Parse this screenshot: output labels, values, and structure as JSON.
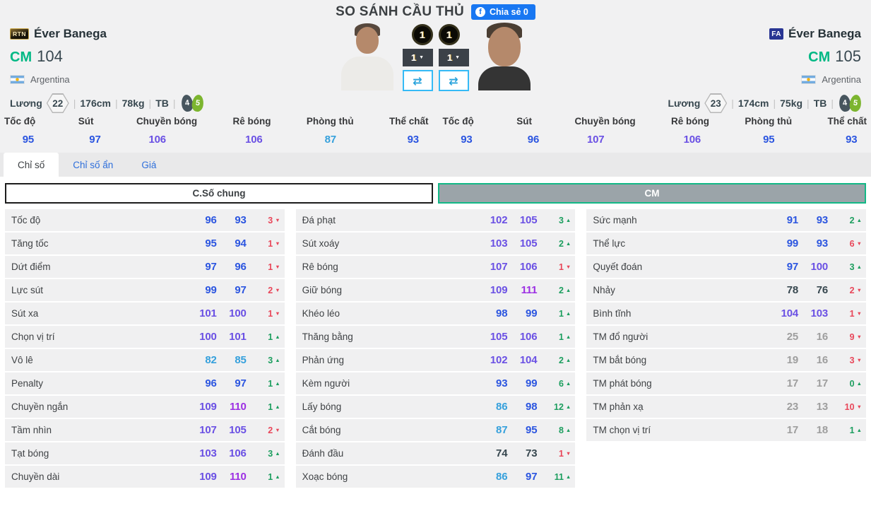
{
  "title": "SO SÁNH CẦU THỦ",
  "share": {
    "label": "Chia sẻ 0",
    "fb": "f"
  },
  "players": {
    "left": {
      "badge": "RTN",
      "name": "Éver Banega",
      "position": "CM",
      "ovr": "104",
      "nation": "Argentina",
      "salary_label": "Lương",
      "salary": "22",
      "height": "176cm",
      "weight": "78kg",
      "body": "TB",
      "weak_foot": "4",
      "strong_foot": "5",
      "sep": "|"
    },
    "right": {
      "badge": "FA",
      "name": "Éver Banega",
      "position": "CM",
      "ovr": "105",
      "nation": "Argentina",
      "salary_label": "Lương",
      "salary": "23",
      "height": "174cm",
      "weight": "75kg",
      "body": "TB",
      "weak_foot": "4",
      "strong_foot": "5",
      "sep": "|"
    }
  },
  "controls": {
    "left_level": "1",
    "right_level": "1",
    "left_select": "1",
    "right_select": "1",
    "caret": "▼",
    "swap_icon": "⇄"
  },
  "headline_left": [
    {
      "label": "Tốc độ",
      "value": "95"
    },
    {
      "label": "Sút",
      "value": "97"
    },
    {
      "label": "Chuyền bóng",
      "value": "106"
    },
    {
      "label": "Rê bóng",
      "value": "106"
    },
    {
      "label": "Phòng thủ",
      "value": "87"
    },
    {
      "label": "Thể chất",
      "value": "93"
    }
  ],
  "headline_right": [
    {
      "label": "Tốc độ",
      "value": "93"
    },
    {
      "label": "Sút",
      "value": "96"
    },
    {
      "label": "Chuyền bóng",
      "value": "107"
    },
    {
      "label": "Rê bóng",
      "value": "106"
    },
    {
      "label": "Phòng thủ",
      "value": "95"
    },
    {
      "label": "Thể chất",
      "value": "93"
    }
  ],
  "tabs": [
    {
      "label": "Chỉ số",
      "active": true
    },
    {
      "label": "Chỉ số ẩn",
      "active": false
    },
    {
      "label": "Giá",
      "active": false
    }
  ],
  "sections": {
    "general": "C.Số chung",
    "position": "CM"
  },
  "stat_columns": {
    "col1": [
      {
        "label": "Tốc độ",
        "v1": "96",
        "v2": "93",
        "d": "3",
        "dir": "down"
      },
      {
        "label": "Tăng tốc",
        "v1": "95",
        "v2": "94",
        "d": "1",
        "dir": "down"
      },
      {
        "label": "Dứt điểm",
        "v1": "97",
        "v2": "96",
        "d": "1",
        "dir": "down"
      },
      {
        "label": "Lực sút",
        "v1": "99",
        "v2": "97",
        "d": "2",
        "dir": "down"
      },
      {
        "label": "Sút xa",
        "v1": "101",
        "v2": "100",
        "d": "1",
        "dir": "down"
      },
      {
        "label": "Chọn vị trí",
        "v1": "100",
        "v2": "101",
        "d": "1",
        "dir": "up"
      },
      {
        "label": "Vô lê",
        "v1": "82",
        "v2": "85",
        "d": "3",
        "dir": "up"
      },
      {
        "label": "Penalty",
        "v1": "96",
        "v2": "97",
        "d": "1",
        "dir": "up"
      },
      {
        "label": "Chuyền ngắn",
        "v1": "109",
        "v2": "110",
        "d": "1",
        "dir": "up"
      },
      {
        "label": "Tầm nhìn",
        "v1": "107",
        "v2": "105",
        "d": "2",
        "dir": "down"
      },
      {
        "label": "Tạt bóng",
        "v1": "103",
        "v2": "106",
        "d": "3",
        "dir": "up"
      },
      {
        "label": "Chuyền dài",
        "v1": "109",
        "v2": "110",
        "d": "1",
        "dir": "up"
      }
    ],
    "col2": [
      {
        "label": "Đá phạt",
        "v1": "102",
        "v2": "105",
        "d": "3",
        "dir": "up"
      },
      {
        "label": "Sút xoáy",
        "v1": "103",
        "v2": "105",
        "d": "2",
        "dir": "up"
      },
      {
        "label": "Rê bóng",
        "v1": "107",
        "v2": "106",
        "d": "1",
        "dir": "down"
      },
      {
        "label": "Giữ bóng",
        "v1": "109",
        "v2": "111",
        "d": "2",
        "dir": "up"
      },
      {
        "label": "Khéo léo",
        "v1": "98",
        "v2": "99",
        "d": "1",
        "dir": "up"
      },
      {
        "label": "Thăng bằng",
        "v1": "105",
        "v2": "106",
        "d": "1",
        "dir": "up"
      },
      {
        "label": "Phản ứng",
        "v1": "102",
        "v2": "104",
        "d": "2",
        "dir": "up"
      },
      {
        "label": "Kèm người",
        "v1": "93",
        "v2": "99",
        "d": "6",
        "dir": "up"
      },
      {
        "label": "Lấy bóng",
        "v1": "86",
        "v2": "98",
        "d": "12",
        "dir": "up"
      },
      {
        "label": "Cắt bóng",
        "v1": "87",
        "v2": "95",
        "d": "8",
        "dir": "up"
      },
      {
        "label": "Đánh đầu",
        "v1": "74",
        "v2": "73",
        "d": "1",
        "dir": "down"
      },
      {
        "label": "Xoạc bóng",
        "v1": "86",
        "v2": "97",
        "d": "11",
        "dir": "up"
      }
    ],
    "col3": [
      {
        "label": "Sức mạnh",
        "v1": "91",
        "v2": "93",
        "d": "2",
        "dir": "up"
      },
      {
        "label": "Thể lực",
        "v1": "99",
        "v2": "93",
        "d": "6",
        "dir": "down"
      },
      {
        "label": "Quyết đoán",
        "v1": "97",
        "v2": "100",
        "d": "3",
        "dir": "up"
      },
      {
        "label": "Nhảy",
        "v1": "78",
        "v2": "76",
        "d": "2",
        "dir": "down"
      },
      {
        "label": "Bình tĩnh",
        "v1": "104",
        "v2": "103",
        "d": "1",
        "dir": "down"
      },
      {
        "label": "TM đổ người",
        "v1": "25",
        "v2": "16",
        "d": "9",
        "dir": "down"
      },
      {
        "label": "TM bắt bóng",
        "v1": "19",
        "v2": "16",
        "d": "3",
        "dir": "down"
      },
      {
        "label": "TM phát bóng",
        "v1": "17",
        "v2": "17",
        "d": "0",
        "dir": "up"
      },
      {
        "label": "TM phản xạ",
        "v1": "23",
        "v2": "13",
        "d": "10",
        "dir": "down"
      },
      {
        "label": "TM chọn vị trí",
        "v1": "17",
        "v2": "18",
        "d": "1",
        "dir": "up"
      }
    ]
  }
}
